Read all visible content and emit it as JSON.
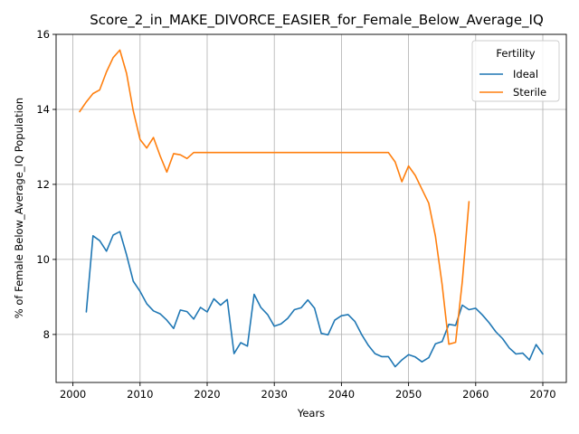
{
  "chart_data": {
    "type": "line",
    "title": "Score_2_in_MAKE_DIVORCE_EASIER_for_Female_Below_Average_IQ",
    "xlabel": "Years",
    "ylabel": "% of Female Below_Average_IQ Population",
    "xlim": [
      1997.5,
      2073.5
    ],
    "ylim": [
      6.72,
      16.0
    ],
    "xticks": [
      2000,
      2010,
      2020,
      2030,
      2040,
      2050,
      2060,
      2070
    ],
    "yticks": [
      8,
      10,
      12,
      14,
      16
    ],
    "grid": true,
    "legend": {
      "title": "Fertility",
      "position": "top-right"
    },
    "series": [
      {
        "name": "Ideal",
        "color": "#1f77b4",
        "x": [
          2002,
          2003,
          2004,
          2005,
          2006,
          2007,
          2008,
          2009,
          2010,
          2011,
          2012,
          2013,
          2014,
          2015,
          2016,
          2017,
          2018,
          2019,
          2020,
          2021,
          2022,
          2023,
          2024,
          2025,
          2026,
          2027,
          2028,
          2029,
          2030,
          2031,
          2032,
          2033,
          2034,
          2035,
          2036,
          2037,
          2038,
          2039,
          2040,
          2041,
          2042,
          2043,
          2044,
          2045,
          2046,
          2047,
          2048,
          2049,
          2050,
          2051,
          2052,
          2053,
          2054,
          2055,
          2056,
          2057,
          2058,
          2059,
          2060,
          2061,
          2062,
          2063,
          2064,
          2065,
          2066,
          2067,
          2068,
          2069,
          2070
        ],
        "y": [
          8.6,
          10.63,
          10.5,
          10.22,
          10.65,
          10.74,
          10.12,
          9.42,
          9.15,
          8.82,
          8.63,
          8.55,
          8.38,
          8.16,
          8.65,
          8.61,
          8.41,
          8.72,
          8.6,
          8.95,
          8.78,
          8.93,
          7.49,
          7.78,
          7.69,
          9.07,
          8.72,
          8.53,
          8.22,
          8.28,
          8.43,
          8.66,
          8.71,
          8.92,
          8.7,
          8.03,
          7.99,
          8.38,
          8.5,
          8.53,
          8.35,
          8.0,
          7.71,
          7.49,
          7.41,
          7.41,
          7.14,
          7.32,
          7.46,
          7.4,
          7.27,
          7.38,
          7.75,
          7.81,
          8.27,
          8.24,
          8.78,
          8.66,
          8.7,
          8.52,
          8.31,
          8.07,
          7.89,
          7.64,
          7.48,
          7.5,
          7.32,
          7.73,
          7.48
        ]
      },
      {
        "name": "Sterile",
        "color": "#ff7f0e",
        "x": [
          2001,
          2002,
          2003,
          2004,
          2005,
          2006,
          2007,
          2008,
          2009,
          2010,
          2011,
          2012,
          2013,
          2014,
          2015,
          2016,
          2017,
          2018,
          2019,
          2020,
          2021,
          2022,
          2023,
          2024,
          2025,
          2026,
          2027,
          2028,
          2029,
          2030,
          2031,
          2032,
          2033,
          2034,
          2035,
          2036,
          2037,
          2038,
          2039,
          2040,
          2041,
          2042,
          2043,
          2044,
          2045,
          2046,
          2047,
          2048,
          2049,
          2050,
          2051,
          2052,
          2053,
          2054,
          2055,
          2056,
          2057,
          2058,
          2059
        ],
        "y": [
          13.94,
          14.2,
          14.42,
          14.52,
          15.0,
          15.38,
          15.58,
          14.96,
          13.96,
          13.2,
          12.97,
          13.25,
          12.76,
          12.33,
          12.82,
          12.79,
          12.69,
          12.85,
          12.85,
          12.85,
          12.85,
          12.85,
          12.85,
          12.85,
          12.85,
          12.85,
          12.85,
          12.85,
          12.85,
          12.85,
          12.85,
          12.85,
          12.85,
          12.85,
          12.85,
          12.85,
          12.85,
          12.85,
          12.85,
          12.85,
          12.85,
          12.85,
          12.85,
          12.85,
          12.85,
          12.85,
          12.85,
          12.6,
          12.07,
          12.49,
          12.24,
          11.87,
          11.5,
          10.62,
          9.33,
          7.74,
          7.79,
          9.41,
          11.54
        ]
      }
    ]
  }
}
